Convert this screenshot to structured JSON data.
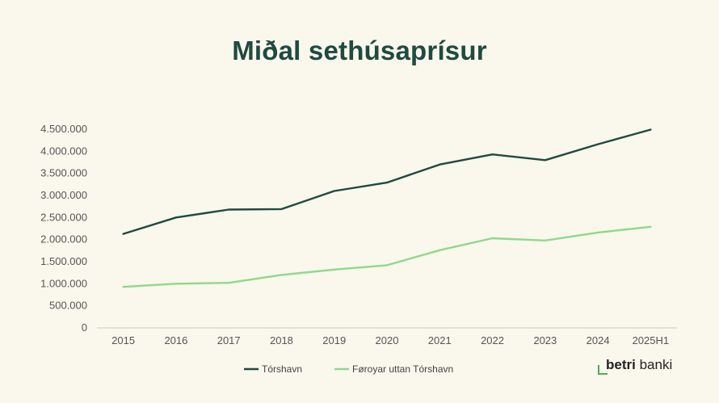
{
  "title": "Miðal sethúsaprísur",
  "brand": {
    "bold": "betri",
    "regular": "banki"
  },
  "colors": {
    "torshavn": "#1f4a40",
    "uttan": "#8fd98a",
    "background": "#faf7ec"
  },
  "chart_data": {
    "type": "line",
    "title": "Miðal sethúsaprísur",
    "categories": [
      "2015",
      "2016",
      "2017",
      "2018",
      "2019",
      "2020",
      "2021",
      "2022",
      "2023",
      "2024",
      "2025H1"
    ],
    "ylim": [
      0,
      4500000
    ],
    "yticks": [
      0,
      500000,
      1000000,
      1500000,
      2000000,
      2500000,
      3000000,
      3500000,
      4000000,
      4500000
    ],
    "ytick_labels": [
      "0",
      "500.000",
      "1.000.000",
      "1.500.000",
      "2.000.000",
      "2.500.000",
      "3.000.000",
      "3.500.000",
      "4.000.000",
      "4.500.000"
    ],
    "grid": false,
    "legend": "bottom",
    "series": [
      {
        "name": "Tórshavn",
        "color": "#1f4a40",
        "values": [
          2130000,
          2500000,
          2680000,
          2690000,
          3100000,
          3290000,
          3700000,
          3930000,
          3800000,
          4160000,
          4490000
        ]
      },
      {
        "name": "Føroyar uttan Tórshavn",
        "color": "#8fd98a",
        "values": [
          930000,
          1000000,
          1020000,
          1200000,
          1320000,
          1420000,
          1760000,
          2030000,
          1980000,
          2160000,
          2290000
        ]
      }
    ]
  }
}
